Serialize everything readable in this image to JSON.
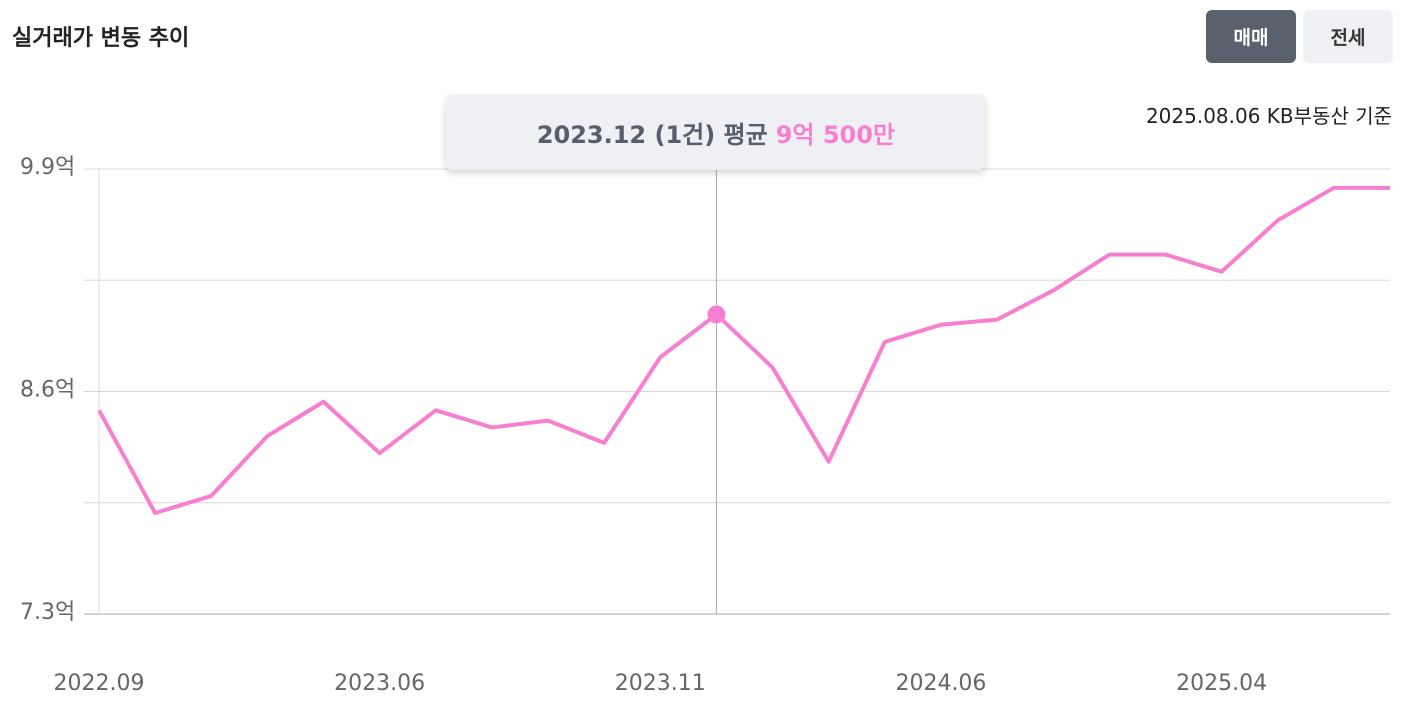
{
  "header": {
    "title": "실거래가 변동 추이",
    "tabs": [
      "매매",
      "전세"
    ],
    "active_tab": 0,
    "note": "2025.08.06 KB부동산 기준"
  },
  "tooltip": {
    "label": "2023.12 (1건) 평균",
    "value_text": "9억 500만",
    "index": 11,
    "color": "#f77fd0"
  },
  "chart_data": {
    "type": "line",
    "categories": [
      "2022.09",
      null,
      null,
      null,
      null,
      "2023.06",
      null,
      null,
      null,
      null,
      "2023.11",
      null,
      null,
      null,
      null,
      "2024.06",
      null,
      null,
      null,
      null,
      "2025.04",
      null,
      null,
      null
    ],
    "values": [
      8.49,
      7.89,
      7.99,
      8.34,
      8.54,
      8.24,
      8.49,
      8.39,
      8.43,
      8.3,
      8.8,
      9.05,
      8.74,
      8.19,
      8.89,
      8.99,
      9.02,
      9.19,
      9.4,
      9.4,
      9.3,
      9.6,
      9.79,
      9.79
    ],
    "color": "#f77fd0",
    "ylim": [
      7.3,
      9.9
    ],
    "yticks": [
      {
        "value": 7.3,
        "label": "7.3억"
      },
      {
        "value": 8.6,
        "label": "8.6억"
      },
      {
        "value": 9.9,
        "label": "9.9억"
      }
    ],
    "minor_yticks": [
      7.95,
      9.25
    ],
    "grid": true
  }
}
